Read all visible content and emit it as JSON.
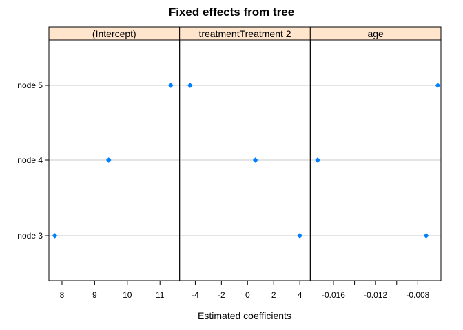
{
  "chart_data": {
    "type": "scatter",
    "title": "Fixed effects from tree",
    "xlabel": "Estimated coefficients",
    "ylabel": "",
    "categories": [
      "node 3",
      "node 4",
      "node 5"
    ],
    "strip_color": "#ffe5cc",
    "point_color": "#0080ff",
    "grid_color": "#c8c8c8",
    "grid": true,
    "panels": [
      {
        "name": "(Intercept)",
        "xlim": [
          7.6,
          11.6
        ],
        "ticks": [
          8,
          9,
          10,
          11
        ],
        "tick_labels": [
          "8",
          "9",
          "10",
          "11"
        ],
        "values": [
          7.78,
          9.43,
          11.33
        ]
      },
      {
        "name": "treatmentTreatment 2",
        "xlim": [
          -5.2,
          4.8
        ],
        "ticks": [
          -4,
          -2,
          0,
          2,
          4
        ],
        "tick_labels": [
          "-4",
          "-2",
          "0",
          "2",
          "4"
        ],
        "values": [
          4.0,
          0.6,
          -4.4
        ]
      },
      {
        "name": "age",
        "xlim": [
          -0.0182,
          -0.0058
        ],
        "ticks": [
          -0.016,
          -0.014,
          -0.012,
          -0.01,
          -0.008
        ],
        "tick_labels": [
          "-0.016",
          "",
          "-0.012",
          "",
          "-0.008"
        ],
        "values": [
          -0.0072,
          -0.0175,
          -0.0061
        ]
      }
    ]
  }
}
